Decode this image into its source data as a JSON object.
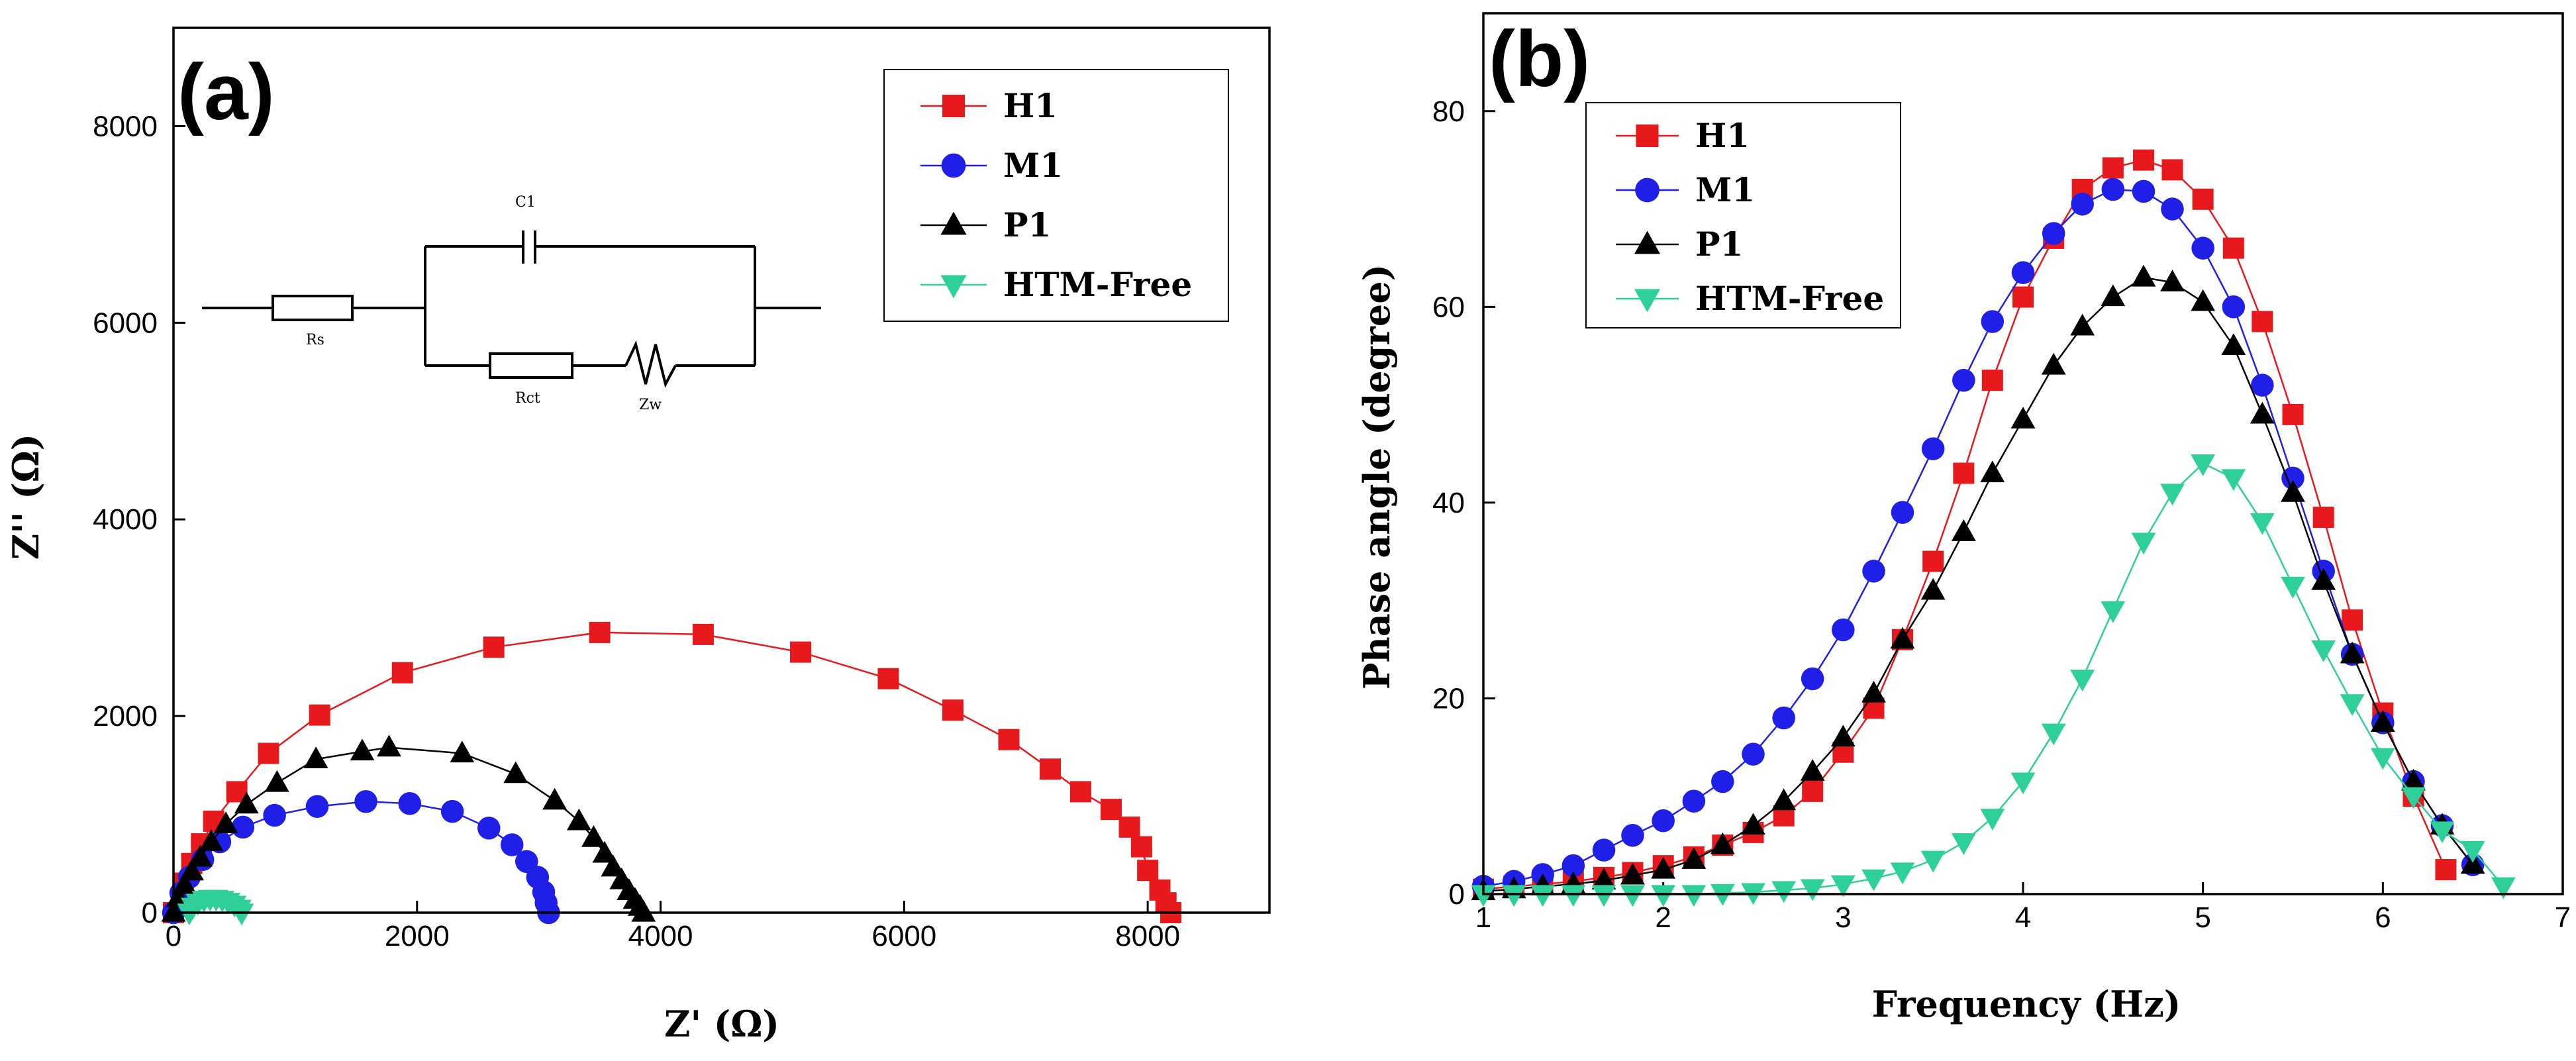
{
  "colors": {
    "H1": "#e8191c",
    "M1": "#1f1fe8",
    "P1": "#000000",
    "HTM-Free": "#2fcf9a"
  },
  "chart_data": [
    {
      "panel": "(a)",
      "type": "scatter",
      "title": "",
      "xlabel": "Z' (Ω)",
      "ylabel": "Z'' (Ω)",
      "xlim": [
        0,
        9000
      ],
      "ylim": [
        0,
        9000
      ],
      "xticks": [
        0,
        2000,
        4000,
        6000,
        8000
      ],
      "yticks": [
        0,
        2000,
        4000,
        6000,
        8000
      ],
      "legend_position": "top-right",
      "inset": {
        "labels": [
          "C1",
          "Rs",
          "Rct",
          "Zw"
        ]
      },
      "series": [
        {
          "name": "H1",
          "marker": "square",
          "x": [
            0,
            80,
            150,
            230,
            330,
            520,
            780,
            1200,
            1880,
            2630,
            3500,
            4350,
            5150,
            5870,
            6400,
            6860,
            7200,
            7450,
            7700,
            7850,
            7950,
            8000,
            8100,
            8150,
            8190
          ],
          "y": [
            0,
            300,
            500,
            700,
            930,
            1230,
            1620,
            2010,
            2440,
            2700,
            2850,
            2830,
            2650,
            2380,
            2060,
            1760,
            1460,
            1230,
            1050,
            870,
            670,
            430,
            230,
            100,
            0
          ]
        },
        {
          "name": "M1",
          "marker": "circle",
          "x": [
            0,
            60,
            130,
            240,
            380,
            570,
            830,
            1180,
            1580,
            1940,
            2290,
            2590,
            2780,
            2900,
            2990,
            3040,
            3060,
            3080
          ],
          "y": [
            0,
            200,
            360,
            540,
            720,
            870,
            990,
            1080,
            1130,
            1110,
            1030,
            860,
            690,
            520,
            360,
            210,
            100,
            0
          ]
        },
        {
          "name": "P1",
          "marker": "triangle-up",
          "x": [
            0,
            40,
            90,
            150,
            220,
            310,
            430,
            600,
            850,
            1170,
            1550,
            1770,
            2370,
            2810,
            3130,
            3330,
            3450,
            3540,
            3610,
            3680,
            3740,
            3790,
            3830,
            3860
          ],
          "y": [
            0,
            150,
            280,
            420,
            560,
            720,
            900,
            1100,
            1320,
            1560,
            1640,
            1680,
            1620,
            1410,
            1140,
            930,
            760,
            600,
            460,
            330,
            220,
            130,
            60,
            0
          ]
        },
        {
          "name": "HTM-Free",
          "marker": "triangle-down",
          "x": [
            130,
            160,
            200,
            250,
            300,
            350,
            400,
            450,
            500,
            540,
            560
          ],
          "y": [
            0,
            60,
            100,
            130,
            140,
            140,
            130,
            110,
            80,
            40,
            0
          ]
        }
      ]
    },
    {
      "panel": "(b)",
      "type": "line",
      "title": "",
      "xlabel": "Frequency (Hz)",
      "ylabel": "Phase angle (degree)",
      "xlim": [
        1,
        7
      ],
      "ylim": [
        0,
        90
      ],
      "xticks": [
        1,
        2,
        3,
        4,
        5,
        6,
        7
      ],
      "yticks": [
        0,
        20,
        40,
        60,
        80
      ],
      "legend_position": "top-left",
      "series": [
        {
          "name": "H1",
          "marker": "square",
          "x": [
            1.0,
            1.17,
            1.33,
            1.5,
            1.67,
            1.83,
            2.0,
            2.17,
            2.33,
            2.5,
            2.67,
            2.83,
            3.0,
            3.17,
            3.33,
            3.5,
            3.67,
            3.83,
            4.0,
            4.17,
            4.33,
            4.5,
            4.67,
            4.83,
            5.0,
            5.17,
            5.33,
            5.5,
            5.67,
            5.83,
            6.0,
            6.17,
            6.35
          ],
          "y": [
            0.5,
            0.8,
            1.0,
            1.3,
            1.7,
            2.2,
            2.9,
            3.8,
            5.0,
            6.3,
            8.0,
            10.5,
            14.5,
            19.0,
            26.0,
            34.0,
            43.0,
            52.5,
            61.0,
            67.0,
            72.0,
            74.2,
            75.0,
            74.0,
            71.0,
            66.0,
            58.5,
            49.0,
            38.5,
            28.0,
            18.5,
            10.0,
            2.5
          ]
        },
        {
          "name": "M1",
          "marker": "circle",
          "x": [
            1.0,
            1.17,
            1.33,
            1.5,
            1.67,
            1.83,
            2.0,
            2.17,
            2.33,
            2.5,
            2.67,
            2.83,
            3.0,
            3.17,
            3.33,
            3.5,
            3.67,
            3.83,
            4.0,
            4.17,
            4.33,
            4.5,
            4.67,
            4.83,
            5.0,
            5.17,
            5.33,
            5.5,
            5.67,
            5.83,
            6.0,
            6.17,
            6.33,
            6.5
          ],
          "y": [
            0.8,
            1.3,
            2.0,
            2.9,
            4.5,
            6.0,
            7.5,
            9.5,
            11.5,
            14.3,
            18.0,
            22.0,
            27.0,
            33.0,
            39.0,
            45.5,
            52.5,
            58.5,
            63.5,
            67.5,
            70.5,
            72.0,
            71.8,
            70.0,
            66.0,
            60.0,
            52.0,
            42.5,
            33.0,
            24.5,
            17.5,
            11.5,
            7.0,
            3.0
          ]
        },
        {
          "name": "P1",
          "marker": "triangle-up",
          "x": [
            1.0,
            1.17,
            1.33,
            1.5,
            1.67,
            1.83,
            2.0,
            2.17,
            2.33,
            2.5,
            2.67,
            2.83,
            3.0,
            3.17,
            3.33,
            3.5,
            3.67,
            3.83,
            4.0,
            4.17,
            4.33,
            4.5,
            4.67,
            4.83,
            5.0,
            5.17,
            5.33,
            5.5,
            5.67,
            5.83,
            6.0,
            6.17,
            6.33,
            6.5
          ],
          "y": [
            0.3,
            0.5,
            0.8,
            1.0,
            1.4,
            1.9,
            2.5,
            3.5,
            5.0,
            7.0,
            9.5,
            12.5,
            16.0,
            20.5,
            26.0,
            31.0,
            37.0,
            43.0,
            48.5,
            54.0,
            58.0,
            61.0,
            63.0,
            62.5,
            60.5,
            56.0,
            49.0,
            41.0,
            32.0,
            24.5,
            17.5,
            11.5,
            7.0,
            3.0
          ]
        },
        {
          "name": "HTM-Free",
          "marker": "triangle-down",
          "x": [
            1.0,
            1.17,
            1.33,
            1.5,
            1.67,
            1.83,
            2.0,
            2.17,
            2.33,
            2.5,
            2.67,
            2.83,
            3.0,
            3.17,
            3.33,
            3.5,
            3.67,
            3.83,
            4.0,
            4.17,
            4.33,
            4.5,
            4.67,
            4.83,
            5.0,
            5.17,
            5.33,
            5.5,
            5.67,
            5.83,
            6.0,
            6.17,
            6.33,
            6.5,
            6.67
          ],
          "y": [
            0.0,
            0.0,
            0.0,
            0.0,
            0.0,
            0.0,
            0.0,
            0.0,
            0.1,
            0.2,
            0.4,
            0.6,
            1.0,
            1.6,
            2.3,
            3.5,
            5.3,
            7.8,
            11.5,
            16.5,
            22.0,
            29.0,
            36.0,
            41.0,
            44.0,
            42.5,
            38.0,
            31.5,
            25.0,
            19.5,
            14.0,
            10.0,
            6.5,
            4.5,
            0.8
          ]
        }
      ]
    }
  ]
}
